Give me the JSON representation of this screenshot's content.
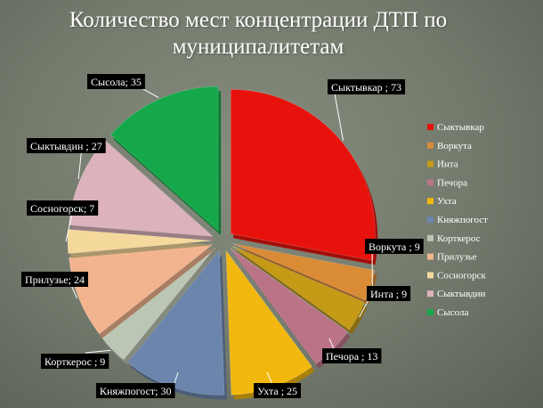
{
  "title": "Количество мест концентрации ДТП по муниципалитетам",
  "title_line1": "Количество мест концентрации ДТП по",
  "title_line2": "муниципалитетам",
  "chart_data": {
    "type": "pie",
    "title": "Количество мест концентрации ДТП по муниципалитетам",
    "exploded": true,
    "legend_position": "right",
    "slices": [
      {
        "name": "Сыктывкар",
        "value": 73,
        "label": "Сыктывкар ; 73",
        "color": "#e8120c"
      },
      {
        "name": "Воркута",
        "value": 9,
        "label": "Воркута ; 9",
        "color": "#d98b36"
      },
      {
        "name": "Инта",
        "value": 9,
        "label": "Инта ; 9",
        "color": "#c49a16"
      },
      {
        "name": "Печора",
        "value": 13,
        "label": "Печора ; 13",
        "color": "#bb7487"
      },
      {
        "name": "Ухта",
        "value": 25,
        "label": "Ухта ; 25",
        "color": "#f2b80d"
      },
      {
        "name": "Княжпогост",
        "value": 30,
        "label": "Княжпогост; 30",
        "color": "#6b85ad"
      },
      {
        "name": "Корткерос",
        "value": 9,
        "label": "Корткерос ; 9",
        "color": "#bcc6b4"
      },
      {
        "name": "Прилузье",
        "value": 24,
        "label": "Прилузье; 24",
        "color": "#f2b48e"
      },
      {
        "name": "Сосногорск",
        "value": 7,
        "label": "Сосногорск; 7",
        "color": "#f5d89c"
      },
      {
        "name": "Сыктывдин",
        "value": 27,
        "label": "Сыктывдин ; 27",
        "color": "#dcb2bd"
      },
      {
        "name": "Сысола",
        "value": 35,
        "label": "Сысола; 35",
        "color": "#15a84a"
      }
    ]
  }
}
